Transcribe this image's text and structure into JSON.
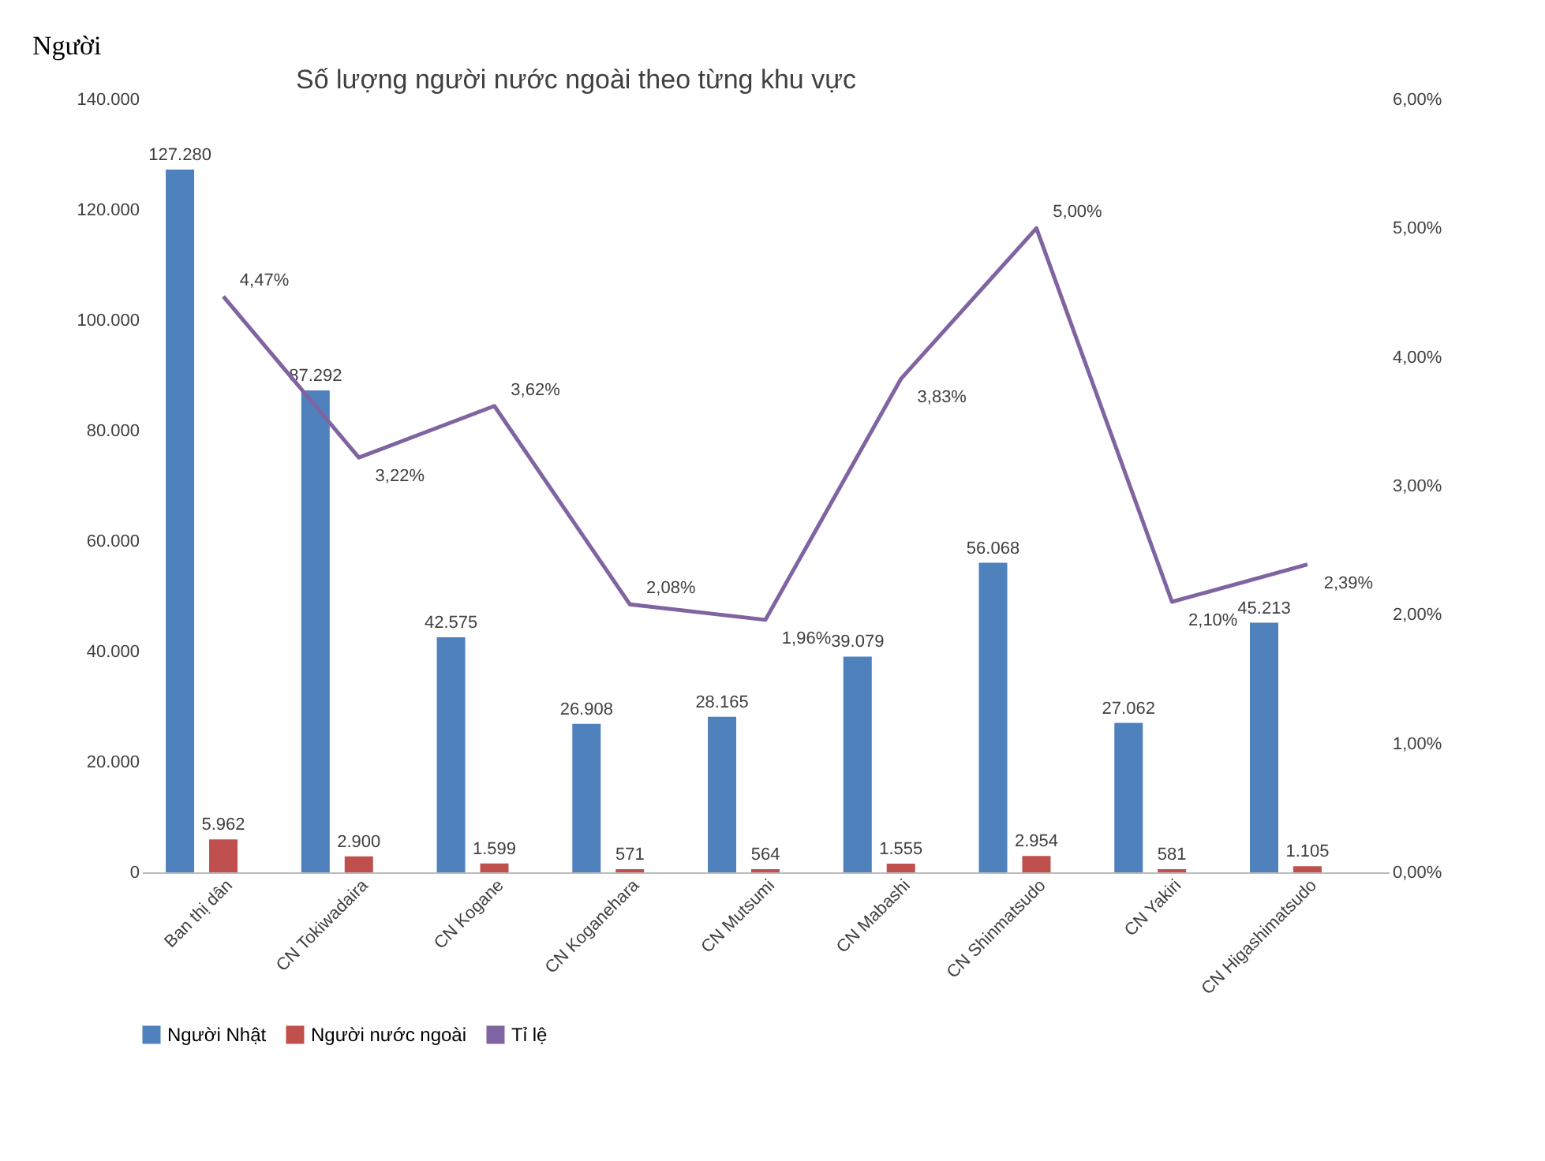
{
  "chart_data": {
    "type": "bar",
    "title": "Số lượng người nước ngoài theo từng khu vực",
    "ylabel": "Người",
    "categories": [
      "Ban thị dân",
      "CN Tokiwadaira",
      "CN Kogane",
      "CN Koganehara",
      "CN Mutsumi",
      "CN Mabashi",
      "CN Shinmatsudo",
      "CN Yakiri",
      "CN Higashimatsudo"
    ],
    "series": [
      {
        "name": "Người Nhật",
        "type": "bar",
        "color": "#4f81bd",
        "values": [
          127280,
          87292,
          42575,
          26908,
          28165,
          39079,
          56068,
          27062,
          45213
        ],
        "value_labels": [
          "127.280",
          "87.292",
          "42.575",
          "26.908",
          "28.165",
          "39.079",
          "56.068",
          "27.062",
          "45.213"
        ]
      },
      {
        "name": "Người nước ngoài",
        "type": "bar",
        "color": "#c0504d",
        "values": [
          5962,
          2900,
          1599,
          571,
          564,
          1555,
          2954,
          581,
          1105
        ],
        "value_labels": [
          "5.962",
          "2.900",
          "1.599",
          "571",
          "564",
          "1.555",
          "2.954",
          "581",
          "1.105"
        ]
      },
      {
        "name": "Tỉ lệ",
        "type": "line",
        "axis": "y2",
        "color": "#8064a2",
        "values": [
          4.47,
          3.22,
          3.62,
          2.08,
          1.96,
          3.83,
          5.0,
          2.1,
          2.39
        ],
        "value_labels": [
          "4,47%",
          "3,22%",
          "3,62%",
          "2,08%",
          "1,96%",
          "3,83%",
          "5,00%",
          "2,10%",
          "2,39%"
        ]
      }
    ],
    "ylim": [
      0,
      140000
    ],
    "yticks": [
      {
        "value": 0,
        "label": "0"
      },
      {
        "value": 20000,
        "label": "20.000"
      },
      {
        "value": 40000,
        "label": "40.000"
      },
      {
        "value": 60000,
        "label": "60.000"
      },
      {
        "value": 80000,
        "label": "80.000"
      },
      {
        "value": 100000,
        "label": "100.000"
      },
      {
        "value": 120000,
        "label": "120.000"
      },
      {
        "value": 140000,
        "label": "140.000"
      }
    ],
    "y2lim": [
      0,
      6
    ],
    "y2ticks": [
      {
        "value": 0,
        "label": "0,00%"
      },
      {
        "value": 1,
        "label": "1,00%"
      },
      {
        "value": 2,
        "label": "2,00%"
      },
      {
        "value": 3,
        "label": "3,00%"
      },
      {
        "value": 4,
        "label": "4,00%"
      },
      {
        "value": 5,
        "label": "5,00%"
      },
      {
        "value": 6,
        "label": "6,00%"
      }
    ],
    "legend": "bottom",
    "grid": false,
    "line_style": "solid",
    "marker": "none"
  }
}
